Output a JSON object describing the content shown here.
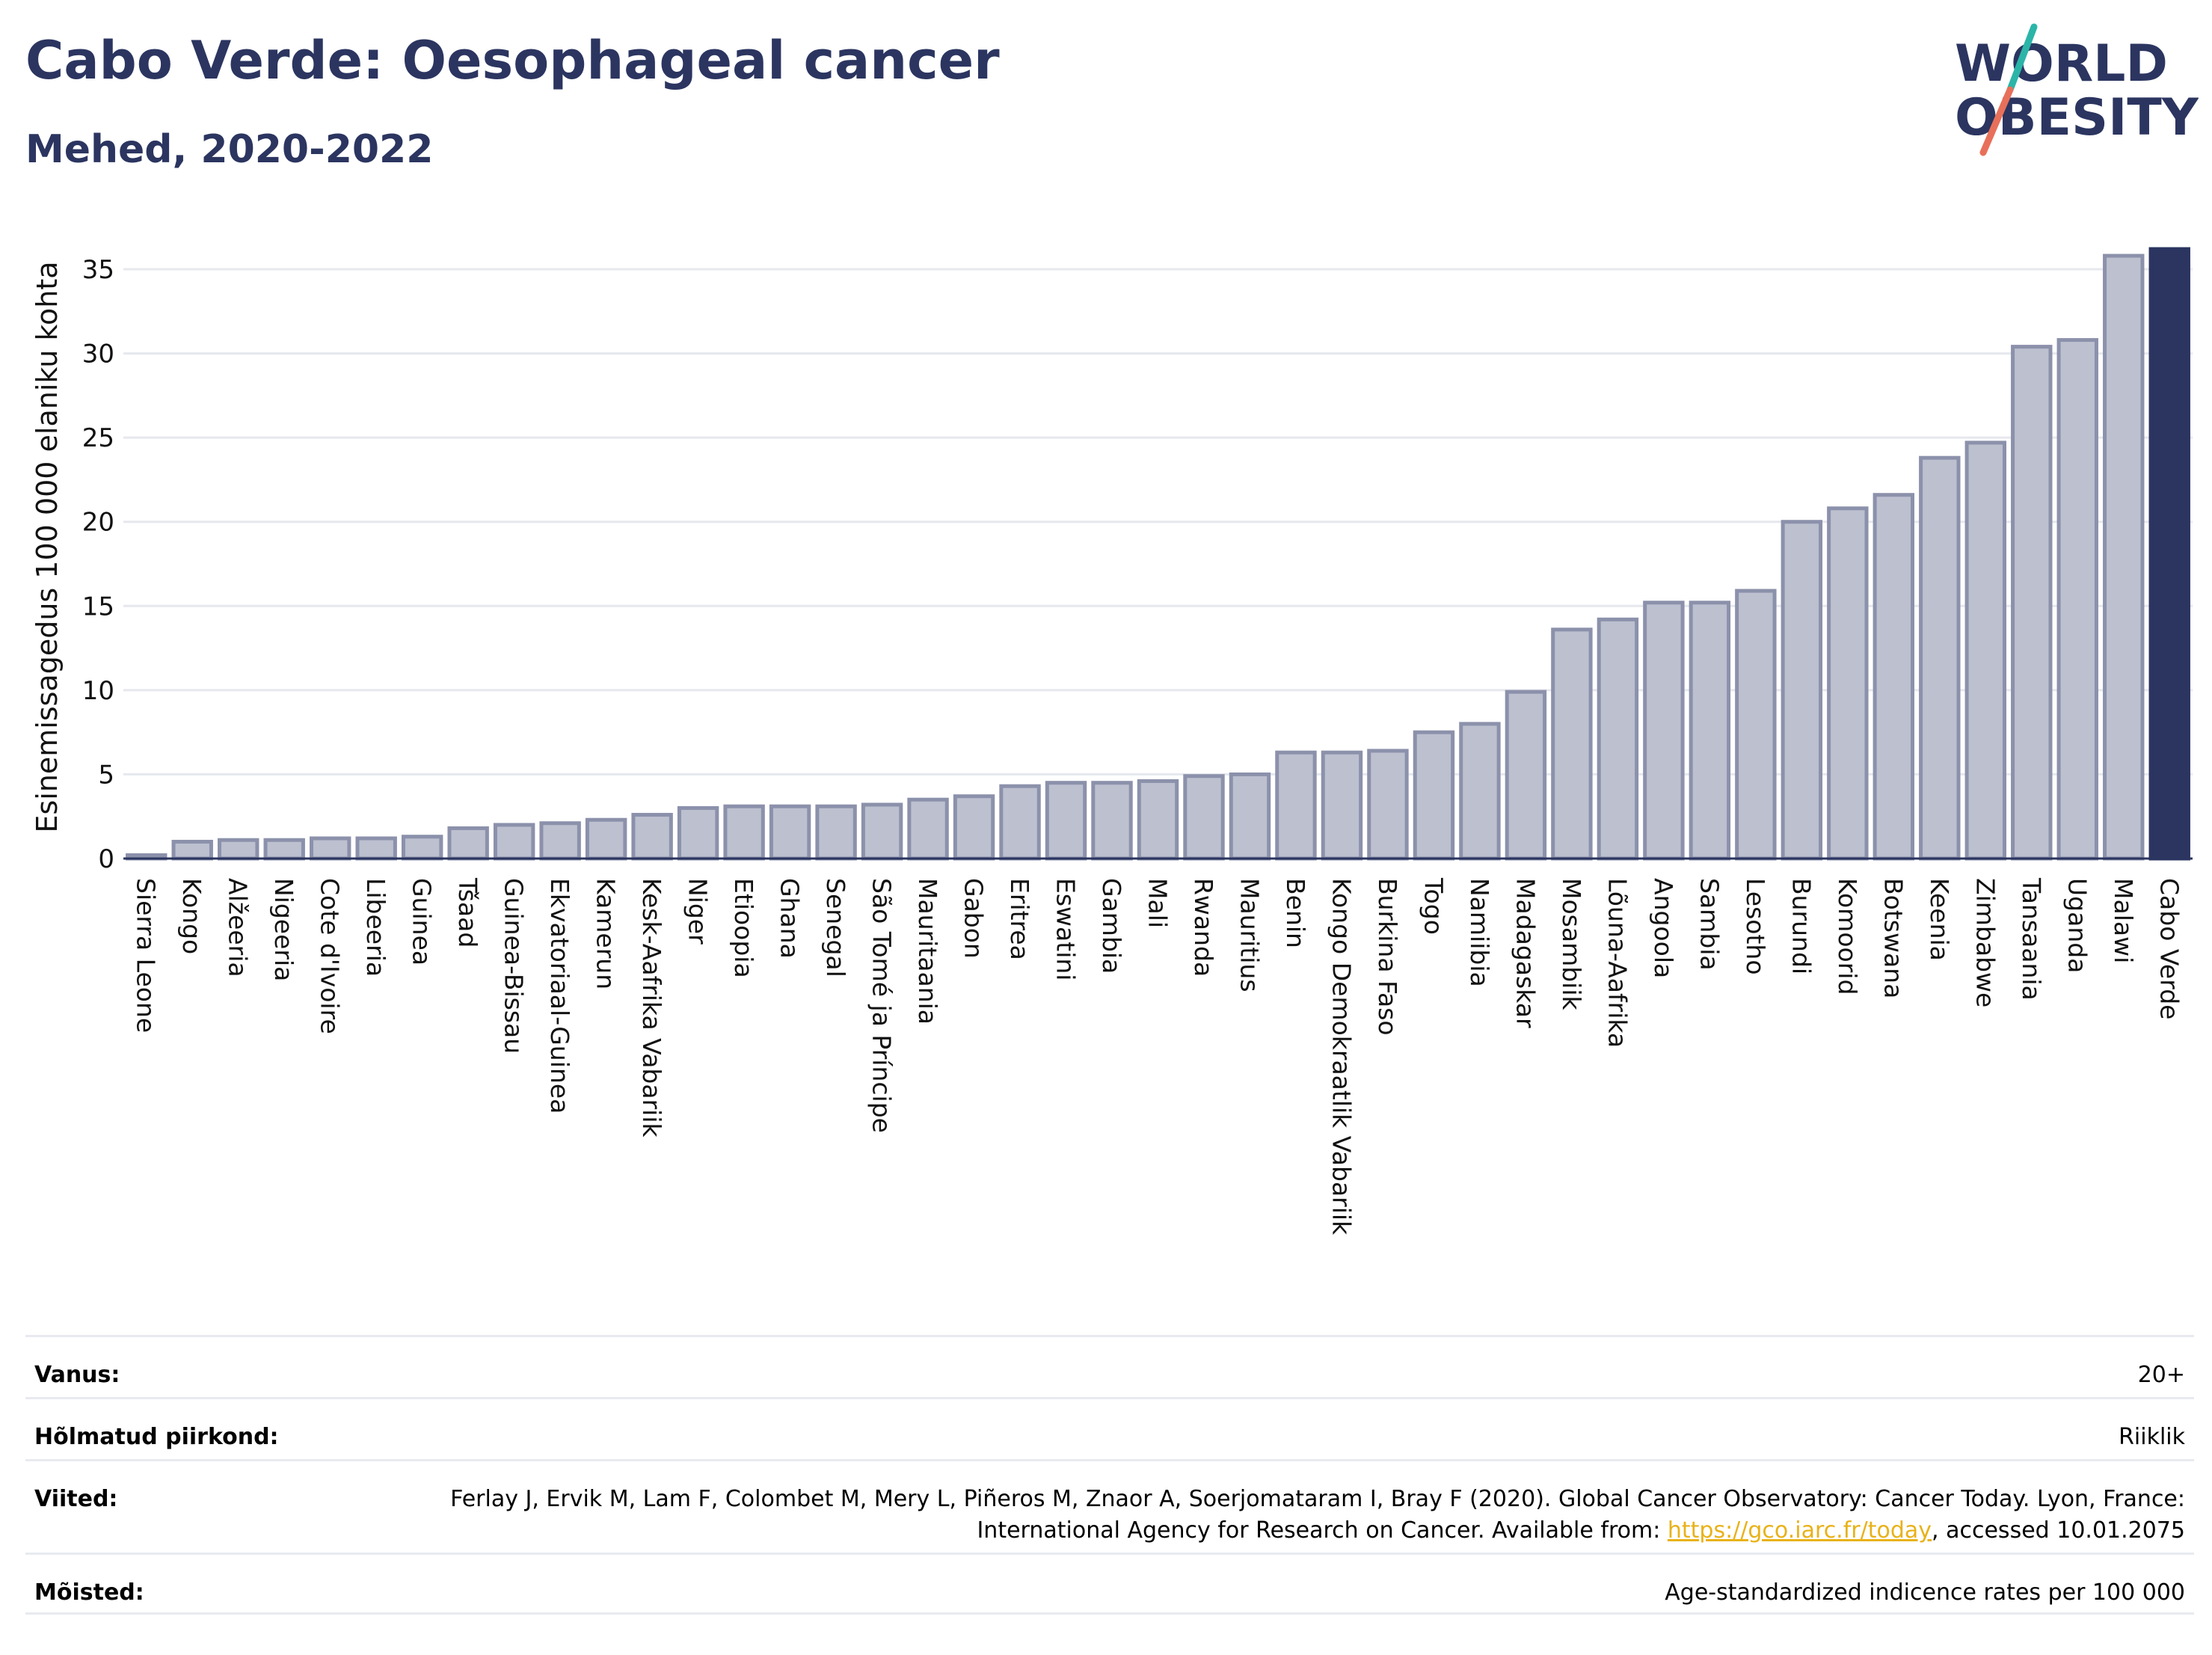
{
  "header": {
    "title": "Cabo Verde: Oesophageal cancer",
    "subtitle": "Mehed, 2020-2022",
    "logo_text_line1": "WORLD",
    "logo_text_line2": "OBESITY"
  },
  "colors": {
    "title": "#2b3560",
    "bar_fill": "#bcc0cf",
    "bar_stroke": "#8c91ab",
    "highlight": "#2b3560",
    "grid": "#e6e8ee",
    "logo_teal": "#2bb5a8",
    "logo_red": "#e8705a",
    "link": "#e8b21a"
  },
  "chart_data": {
    "type": "bar",
    "ylabel": "Esinemissagedus 100 000 elaniku kohta",
    "xlabel": "",
    "ylim": [
      0,
      37
    ],
    "yticks": [
      0,
      5,
      10,
      15,
      20,
      25,
      30,
      35
    ],
    "grid": true,
    "highlight_category": "Cabo Verde",
    "categories": [
      "Sierra Leone",
      "Kongo",
      "Alžeeria",
      "Nigeeria",
      "Cote d'Ivoire",
      "Libeeria",
      "Guinea",
      "Tšaad",
      "Guinea-Bissau",
      "Ekvatoriaal-Guinea",
      "Kamerun",
      "Kesk-Aafrika Vabariik",
      "Niger",
      "Etioopia",
      "Ghana",
      "Senegal",
      "São Tomé ja Príncipe",
      "Mauritaania",
      "Gabon",
      "Eritrea",
      "Eswatini",
      "Gambia",
      "Mali",
      "Rwanda",
      "Mauritius",
      "Benin",
      "Kongo Demokraatlik Vabariik",
      "Burkina Faso",
      "Togo",
      "Namiibia",
      "Madagaskar",
      "Mosambiik",
      "Lõuna-Aafrika",
      "Angoola",
      "Sambia",
      "Lesotho",
      "Burundi",
      "Komoorid",
      "Botswana",
      "Keenia",
      "Zimbabwe",
      "Tansaania",
      "Uganda",
      "Malawi",
      "Cabo Verde"
    ],
    "values": [
      0.2,
      1.0,
      1.1,
      1.1,
      1.2,
      1.2,
      1.3,
      1.8,
      2.0,
      2.1,
      2.3,
      2.6,
      3.0,
      3.1,
      3.1,
      3.1,
      3.2,
      3.5,
      3.7,
      4.3,
      4.5,
      4.5,
      4.6,
      4.9,
      5.0,
      6.3,
      6.3,
      6.4,
      7.5,
      8.0,
      9.9,
      13.6,
      14.2,
      15.2,
      15.2,
      15.9,
      20.0,
      20.8,
      21.6,
      23.8,
      24.7,
      30.4,
      30.8,
      35.8,
      36.2
    ]
  },
  "meta": {
    "age_label": "Vanus:",
    "age_value": "20+",
    "region_label": "Hõlmatud piirkond:",
    "region_value": "Riiklik",
    "refs_label": "Viited:",
    "refs_text_1": "Ferlay J, Ervik M, Lam F, Colombet M, Mery L, Piñeros M, Znaor A, Soerjomataram I, Bray F (2020). Global Cancer Observatory: Cancer Today. Lyon, France: International Agency for Research on Cancer. Available from: ",
    "refs_link": "https://gco.iarc.fr/today",
    "refs_text_2": ", accessed 10.01.2075",
    "defs_label": "Mõisted:",
    "defs_value": "Age-standardized indicence rates per 100 000"
  }
}
